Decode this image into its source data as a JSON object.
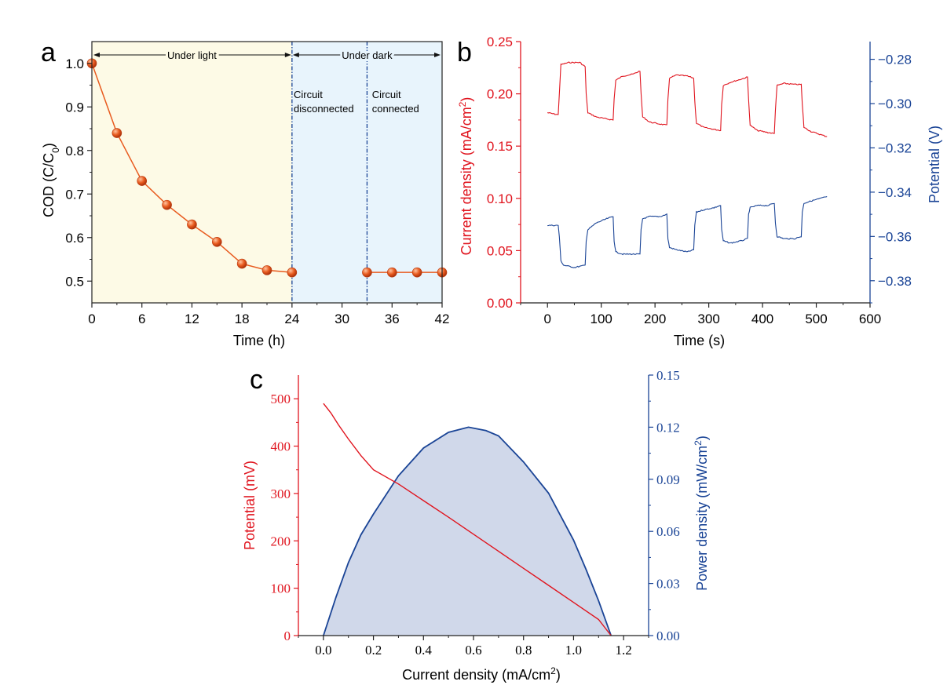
{
  "colors": {
    "red": "#e0141e",
    "blue": "#1a4496",
    "sphere": "#e85a1e",
    "sphere_highlight": "#ffc4a0",
    "light_bg": "#fdfae6",
    "dark_bg": "#e8f4fc",
    "fill_blue": "#d0d8ea",
    "axis": "#222222"
  },
  "chart_data": [
    {
      "panel": "a",
      "type": "line",
      "xlabel": "Time (h)",
      "ylabel_parts": [
        "COD (C/C",
        "0",
        ")"
      ],
      "xlim": [
        0,
        42
      ],
      "ylim": [
        0.45,
        1.05
      ],
      "xticks": [
        "0",
        "6",
        "12",
        "18",
        "24",
        "30",
        "36",
        "42"
      ],
      "yticks": [
        "0.5",
        "0.6",
        "0.7",
        "0.8",
        "0.9",
        "1.0"
      ],
      "x": [
        0,
        3,
        6,
        9,
        12,
        15,
        18,
        21,
        24,
        33,
        36,
        39,
        42
      ],
      "y": [
        1.0,
        0.84,
        0.73,
        0.675,
        0.63,
        0.59,
        0.54,
        0.525,
        0.52,
        0.52,
        0.52,
        0.52,
        0.52
      ],
      "segments": [
        [
          0,
          8
        ],
        [
          9,
          12
        ]
      ],
      "regions": [
        {
          "label": "Under light",
          "x0": 0,
          "x1": 24
        },
        {
          "label": "Under dark",
          "x0": 24,
          "x1": 42
        }
      ],
      "annotations": [
        {
          "lines": [
            "Circuit",
            "disconnected"
          ],
          "x": 24.2
        },
        {
          "lines": [
            "Circuit",
            "connected"
          ],
          "x": 33.6
        }
      ],
      "vlines": [
        24,
        33
      ]
    },
    {
      "panel": "b",
      "type": "line",
      "xlabel": "Time (s)",
      "ylabel_left": "Current density (mA/cm²)",
      "ylabel_left_parts": [
        "Current density (mA/cm",
        "2",
        ")"
      ],
      "ylabel_right": "Potential (V)",
      "xlim": [
        -50,
        600
      ],
      "ylim_left": [
        0.0,
        0.25
      ],
      "ylim_right": [
        -0.39,
        -0.272
      ],
      "xticks": [
        "0",
        "100",
        "200",
        "300",
        "400",
        "500",
        "600"
      ],
      "yticks_left": [
        "0.00",
        "0.05",
        "0.10",
        "0.15",
        "0.20",
        "0.25"
      ],
      "yticks_right": [
        "-0.28",
        "-0.30",
        "-0.32",
        "-0.34",
        "-0.36",
        "-0.38"
      ],
      "series": [
        {
          "name": "Current density",
          "axis": "left",
          "x": [
            0,
            20,
            22,
            25,
            40,
            60,
            70,
            72,
            75,
            90,
            110,
            122,
            124,
            127,
            140,
            160,
            172,
            174,
            177,
            190,
            210,
            222,
            224,
            227,
            240,
            260,
            272,
            274,
            277,
            290,
            310,
            322,
            324,
            327,
            340,
            360,
            372,
            374,
            377,
            390,
            410,
            422,
            424,
            427,
            440,
            460,
            472,
            474,
            477,
            490,
            520
          ],
          "y": [
            0.182,
            0.18,
            0.2,
            0.228,
            0.23,
            0.23,
            0.226,
            0.2,
            0.182,
            0.178,
            0.176,
            0.175,
            0.195,
            0.213,
            0.217,
            0.219,
            0.222,
            0.2,
            0.178,
            0.173,
            0.171,
            0.17,
            0.195,
            0.215,
            0.218,
            0.217,
            0.215,
            0.193,
            0.172,
            0.168,
            0.166,
            0.165,
            0.19,
            0.208,
            0.211,
            0.214,
            0.216,
            0.195,
            0.17,
            0.165,
            0.163,
            0.162,
            0.185,
            0.208,
            0.21,
            0.209,
            0.209,
            0.19,
            0.168,
            0.164,
            0.159
          ]
        },
        {
          "name": "Potential",
          "axis": "right",
          "x": [
            0,
            20,
            22,
            25,
            30,
            50,
            70,
            72,
            75,
            90,
            110,
            122,
            124,
            127,
            140,
            160,
            172,
            174,
            177,
            190,
            210,
            222,
            224,
            227,
            240,
            260,
            272,
            274,
            277,
            290,
            310,
            322,
            324,
            327,
            340,
            360,
            372,
            374,
            377,
            390,
            410,
            422,
            424,
            427,
            440,
            460,
            472,
            474,
            477,
            490,
            520
          ],
          "y": [
            -0.355,
            -0.355,
            -0.36,
            -0.371,
            -0.373,
            -0.374,
            -0.373,
            -0.362,
            -0.357,
            -0.354,
            -0.352,
            -0.351,
            -0.362,
            -0.367,
            -0.368,
            -0.368,
            -0.368,
            -0.357,
            -0.352,
            -0.351,
            -0.351,
            -0.35,
            -0.361,
            -0.365,
            -0.366,
            -0.367,
            -0.366,
            -0.355,
            -0.349,
            -0.348,
            -0.347,
            -0.346,
            -0.357,
            -0.362,
            -0.363,
            -0.362,
            -0.361,
            -0.35,
            -0.347,
            -0.346,
            -0.346,
            -0.345,
            -0.354,
            -0.36,
            -0.361,
            -0.361,
            -0.36,
            -0.349,
            -0.345,
            -0.344,
            -0.342
          ]
        }
      ]
    },
    {
      "panel": "c",
      "type": "area",
      "xlabel": "Current density (mA/cm²)",
      "xlabel_parts": [
        "Current density (mA/cm",
        "2",
        ")"
      ],
      "ylabel_left": "Potential (mV)",
      "ylabel_right": "Power density (mW/cm²)",
      "ylabel_right_parts": [
        "Power density (mW/cm",
        "2",
        ")"
      ],
      "xlim": [
        -0.1,
        1.3
      ],
      "ylim_left": [
        0,
        550
      ],
      "ylim_right": [
        0,
        0.15
      ],
      "xticks": [
        "0.0",
        "0.2",
        "0.4",
        "0.6",
        "0.8",
        "1.0",
        "1.2"
      ],
      "yticks_left": [
        "0",
        "100",
        "200",
        "300",
        "400",
        "500"
      ],
      "yticks_right": [
        "0.00",
        "0.03",
        "0.06",
        "0.09",
        "0.12",
        "0.15"
      ],
      "series": [
        {
          "name": "Potential",
          "axis": "left",
          "x": [
            0.0,
            0.03,
            0.06,
            0.1,
            0.15,
            0.2,
            0.3,
            0.4,
            0.5,
            0.6,
            0.7,
            0.8,
            0.9,
            1.0,
            1.1,
            1.15
          ],
          "y": [
            490,
            470,
            445,
            415,
            380,
            350,
            320,
            285,
            250,
            214,
            178,
            142,
            106,
            70,
            34,
            0
          ]
        },
        {
          "name": "Power density",
          "axis": "right",
          "x": [
            0.0,
            0.05,
            0.1,
            0.15,
            0.2,
            0.3,
            0.4,
            0.5,
            0.58,
            0.65,
            0.7,
            0.8,
            0.9,
            1.0,
            1.05,
            1.1,
            1.15
          ],
          "y": [
            0.0,
            0.022,
            0.042,
            0.058,
            0.07,
            0.092,
            0.108,
            0.117,
            0.12,
            0.118,
            0.115,
            0.1,
            0.082,
            0.055,
            0.038,
            0.02,
            0.0
          ]
        }
      ]
    }
  ],
  "panel_labels": [
    "a",
    "b",
    "c"
  ]
}
